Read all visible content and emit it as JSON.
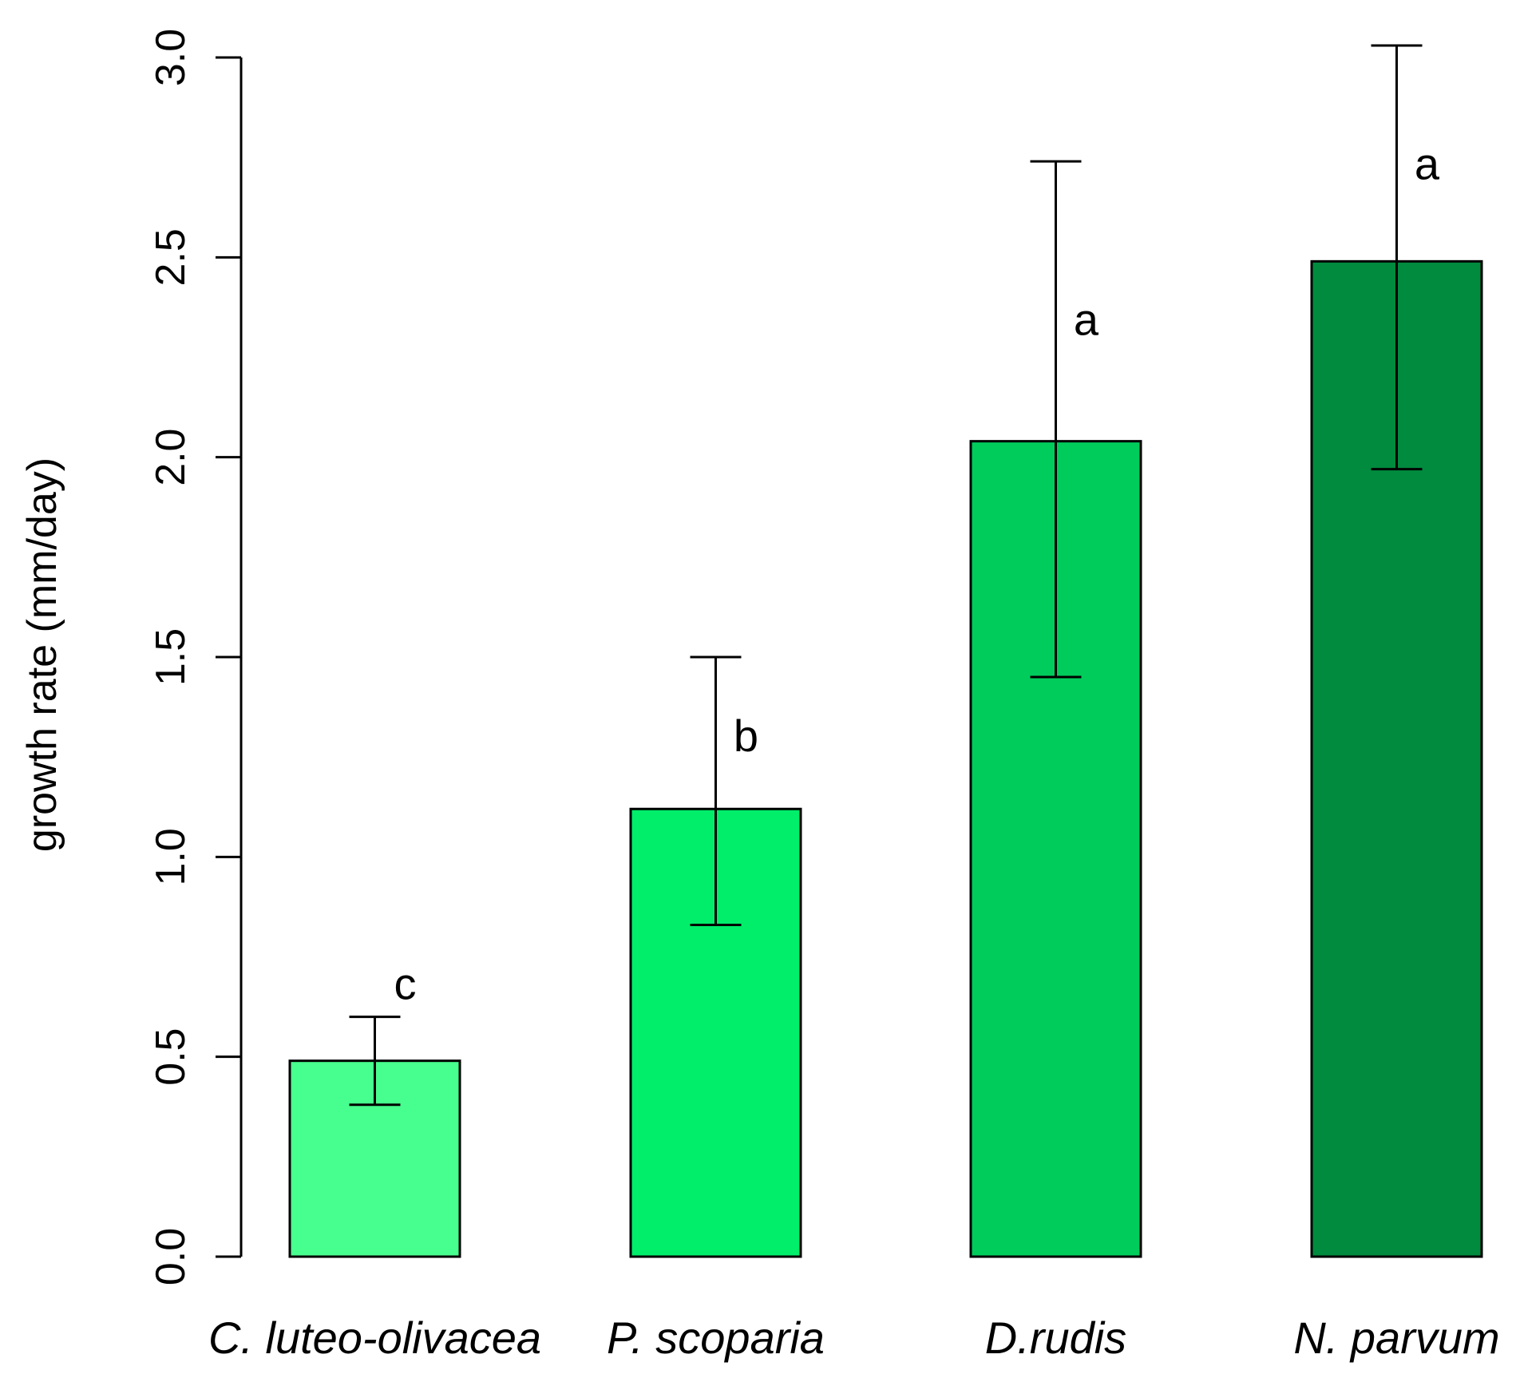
{
  "chart_data": {
    "type": "bar",
    "title": "",
    "xlabel": "",
    "ylabel": "growth rate (mm/day)",
    "ylim": [
      0,
      3.0
    ],
    "yticks": [
      0.0,
      0.5,
      1.0,
      1.5,
      2.0,
      2.5,
      3.0
    ],
    "ytick_labels": [
      "0.0",
      "0.5",
      "1.0",
      "1.5",
      "2.0",
      "2.5",
      "3.0"
    ],
    "grid": false,
    "categories": [
      "C. luteo-olivacea",
      "P. scoparia",
      "D.rudis",
      "N. parvum"
    ],
    "values": [
      0.49,
      1.12,
      2.04,
      2.49
    ],
    "error_low": [
      0.38,
      0.83,
      1.45,
      1.97
    ],
    "error_high": [
      0.6,
      1.5,
      2.74,
      3.03
    ],
    "significance_letters": [
      "c",
      "b",
      "a",
      "a"
    ],
    "colors": [
      "#47FF8E",
      "#00EE6A",
      "#00CC5C",
      "#008B3E"
    ]
  }
}
